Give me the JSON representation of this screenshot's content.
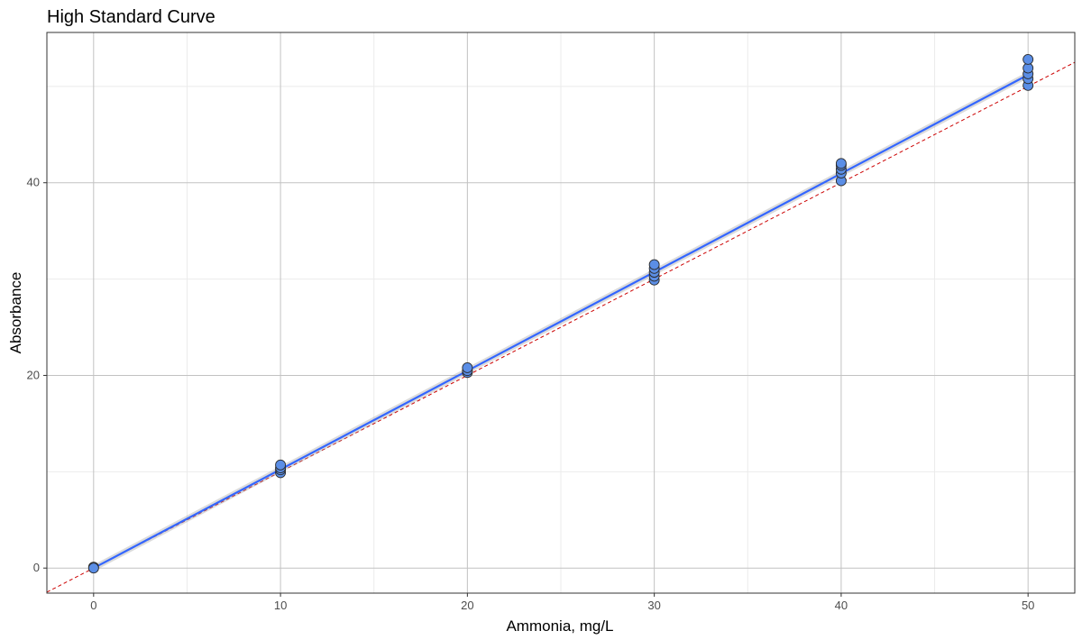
{
  "chart_data": {
    "type": "scatter",
    "title": "High Standard Curve",
    "xlabel": "Ammonia, mg/L",
    "ylabel": "Absorbance",
    "xlim": [
      -2.5,
      52.5
    ],
    "ylim": [
      -2.6,
      55.6
    ],
    "x_ticks": [
      0,
      10,
      20,
      30,
      40,
      50
    ],
    "y_ticks": [
      0,
      20,
      40
    ],
    "grid": true,
    "legend": "none",
    "series": [
      {
        "type": "scatter",
        "points": [
          [
            0,
            0.1
          ],
          [
            0,
            0.0
          ],
          [
            10,
            9.9
          ],
          [
            10,
            10.2
          ],
          [
            10,
            10.4
          ],
          [
            10,
            10.7
          ],
          [
            20,
            20.3
          ],
          [
            20,
            20.5
          ],
          [
            20,
            20.8
          ],
          [
            30,
            29.9
          ],
          [
            30,
            30.3
          ],
          [
            30,
            30.7
          ],
          [
            30,
            31.1
          ],
          [
            30,
            31.5
          ],
          [
            40,
            40.2
          ],
          [
            40,
            41.0
          ],
          [
            40,
            41.4
          ],
          [
            40,
            41.8
          ],
          [
            40,
            42.0
          ],
          [
            50,
            50.1
          ],
          [
            50,
            50.8
          ],
          [
            50,
            51.3
          ],
          [
            50,
            51.9
          ],
          [
            50,
            52.8
          ]
        ],
        "color": "#5b8ee6"
      },
      {
        "type": "line",
        "style": "fit",
        "x": [
          0,
          50
        ],
        "y": [
          0.0,
          51.2
        ],
        "color": "#3366ff"
      },
      {
        "type": "line",
        "style": "dashed",
        "x": [
          -2.5,
          52.5
        ],
        "y": [
          -2.5,
          52.5
        ],
        "color": "#cc0000"
      }
    ]
  }
}
